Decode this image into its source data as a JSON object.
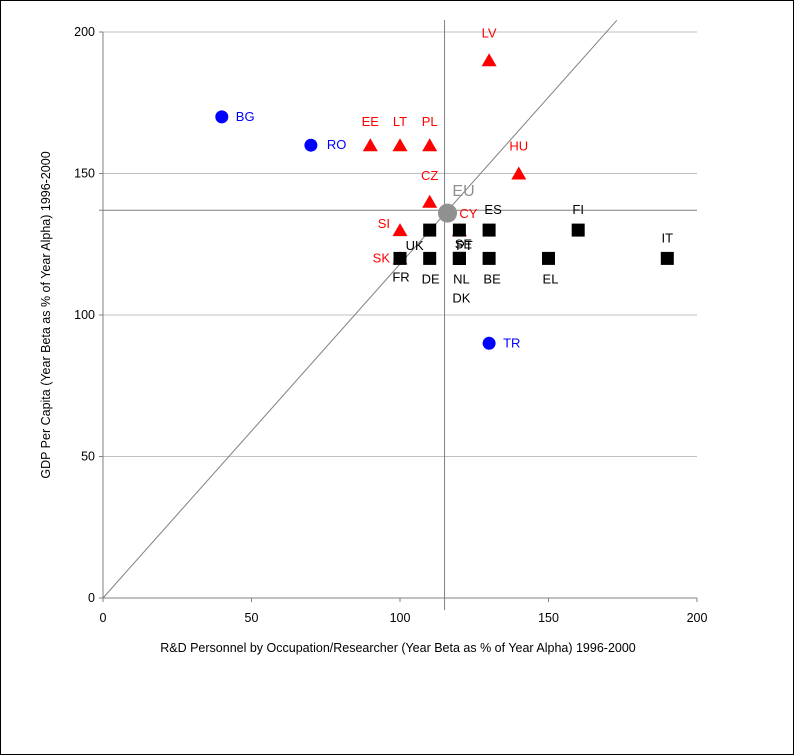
{
  "chart_data": {
    "type": "scatter",
    "title": "",
    "xlabel": "R&D Personnel by Occupation/Researcher  (Year Beta as % of Year Alpha) 1996-2000",
    "ylabel": "GDP Per Capita  (Year Beta as % of Year Alpha) 1996-2000",
    "xlim": [
      0,
      200
    ],
    "ylim": [
      0,
      200
    ],
    "x_ticks": [
      0,
      50,
      100,
      150,
      200
    ],
    "y_ticks": [
      0,
      50,
      100,
      150,
      200
    ],
    "grid": "horizontal",
    "reference_lines": {
      "vertical_x": 115,
      "horizontal_y": 137,
      "diagonal_slope": 1.18
    },
    "colors": {
      "blue": "#0000ff",
      "red": "#ff0000",
      "black": "#000000",
      "eu": "#909090",
      "grid": "#c0c0c0",
      "axis": "#808080"
    },
    "series": [
      {
        "marker": "circle",
        "color": "#0000ff",
        "points": [
          {
            "label": "BG",
            "x": 40,
            "y": 170
          },
          {
            "label": "RO",
            "x": 70,
            "y": 160
          },
          {
            "label": "TR",
            "x": 130,
            "y": 90
          }
        ]
      },
      {
        "marker": "triangle",
        "color": "#ff0000",
        "points": [
          {
            "label": "EE",
            "x": 90,
            "y": 160
          },
          {
            "label": "LT",
            "x": 100,
            "y": 160
          },
          {
            "label": "PL",
            "x": 110,
            "y": 160
          },
          {
            "label": "LV",
            "x": 130,
            "y": 190
          },
          {
            "label": "HU",
            "x": 140,
            "y": 150
          },
          {
            "label": "CZ",
            "x": 110,
            "y": 140
          },
          {
            "label": "SI",
            "x": 100,
            "y": 130
          },
          {
            "label": "CY",
            "x": 120,
            "y": 130
          },
          {
            "label": "SK",
            "x": 100,
            "y": 120
          }
        ]
      },
      {
        "marker": "square",
        "color": "#000000",
        "points": [
          {
            "label": "UK",
            "x": 110,
            "y": 130
          },
          {
            "label": "PT",
            "x": 120,
            "y": 130
          },
          {
            "label": "ES",
            "x": 130,
            "y": 130
          },
          {
            "label": "FI",
            "x": 160,
            "y": 130
          },
          {
            "label": "FR",
            "x": 100,
            "y": 120
          },
          {
            "label": "DE",
            "x": 110,
            "y": 120
          },
          {
            "label": "SE",
            "x": 120,
            "y": 120
          },
          {
            "label": "BE",
            "x": 130,
            "y": 120
          },
          {
            "label": "EL",
            "x": 150,
            "y": 120
          },
          {
            "label": "IT",
            "x": 190,
            "y": 120
          },
          {
            "label": "NL",
            "x": 120,
            "y": 120
          },
          {
            "label": "DK",
            "x": 120,
            "y": 120
          }
        ]
      },
      {
        "marker": "big-circle",
        "color": "#909090",
        "points": [
          {
            "label": "EU",
            "x": 116,
            "y": 136
          }
        ]
      }
    ]
  }
}
